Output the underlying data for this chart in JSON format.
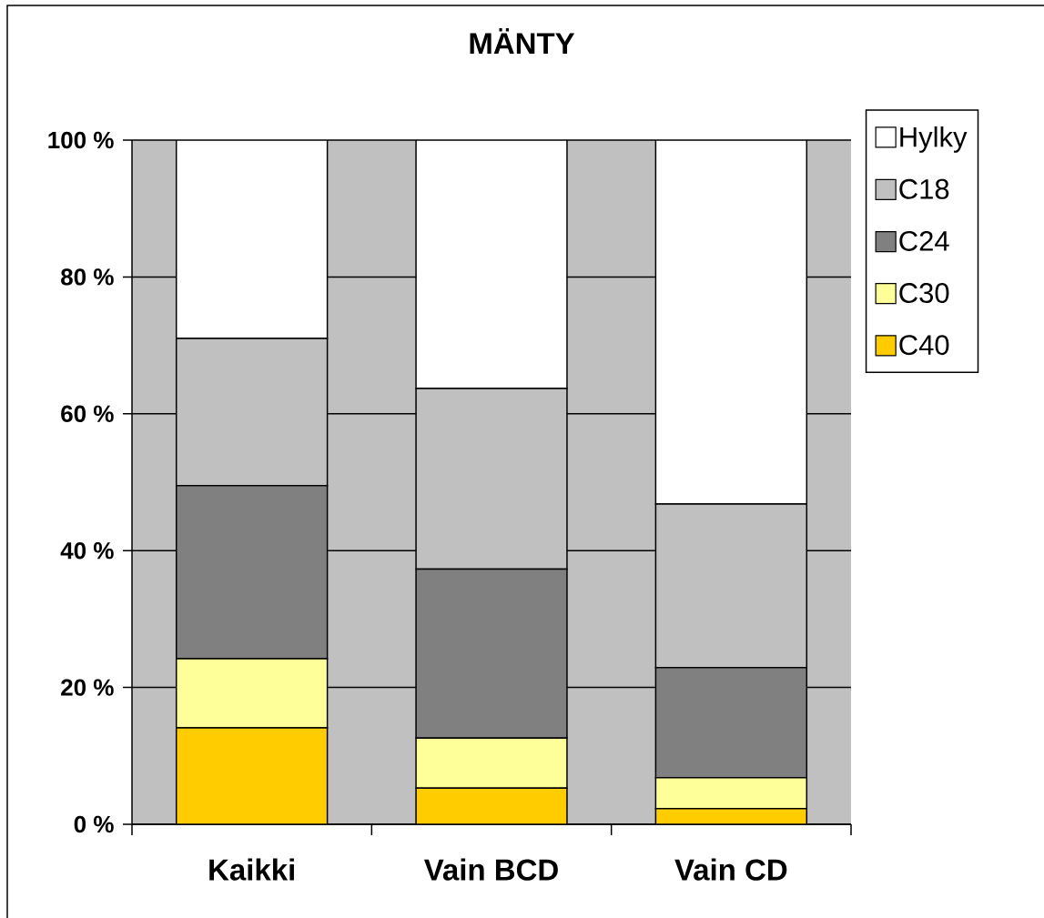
{
  "chart_data": {
    "type": "bar",
    "title": "MÄNTY",
    "categories": [
      "Kaikki",
      "Vain BCD",
      "Vain CD"
    ],
    "stacked": true,
    "series": [
      {
        "name": "C40",
        "color": "#ffcc00",
        "values": [
          14.1,
          5.3,
          2.3
        ]
      },
      {
        "name": "C30",
        "color": "#ffff99",
        "values": [
          10.1,
          7.3,
          4.5
        ]
      },
      {
        "name": "C24",
        "color": "#808080",
        "values": [
          25.3,
          24.7,
          16.1
        ]
      },
      {
        "name": "C18",
        "color": "#c0c0c0",
        "values": [
          21.5,
          26.4,
          23.9
        ]
      },
      {
        "name": "Hylky",
        "color": "#ffffff",
        "values": [
          29.0,
          36.3,
          53.2
        ]
      }
    ],
    "ylim": [
      0,
      100
    ],
    "yticks": [
      {
        "value": 0,
        "label": "0 %"
      },
      {
        "value": 20,
        "label": "20 %"
      },
      {
        "value": 40,
        "label": "40 %"
      },
      {
        "value": 60,
        "label": "60 %"
      },
      {
        "value": 80,
        "label": "80 %"
      },
      {
        "value": 100,
        "label": "100 %"
      }
    ],
    "grid": "y",
    "legend": "top right"
  }
}
